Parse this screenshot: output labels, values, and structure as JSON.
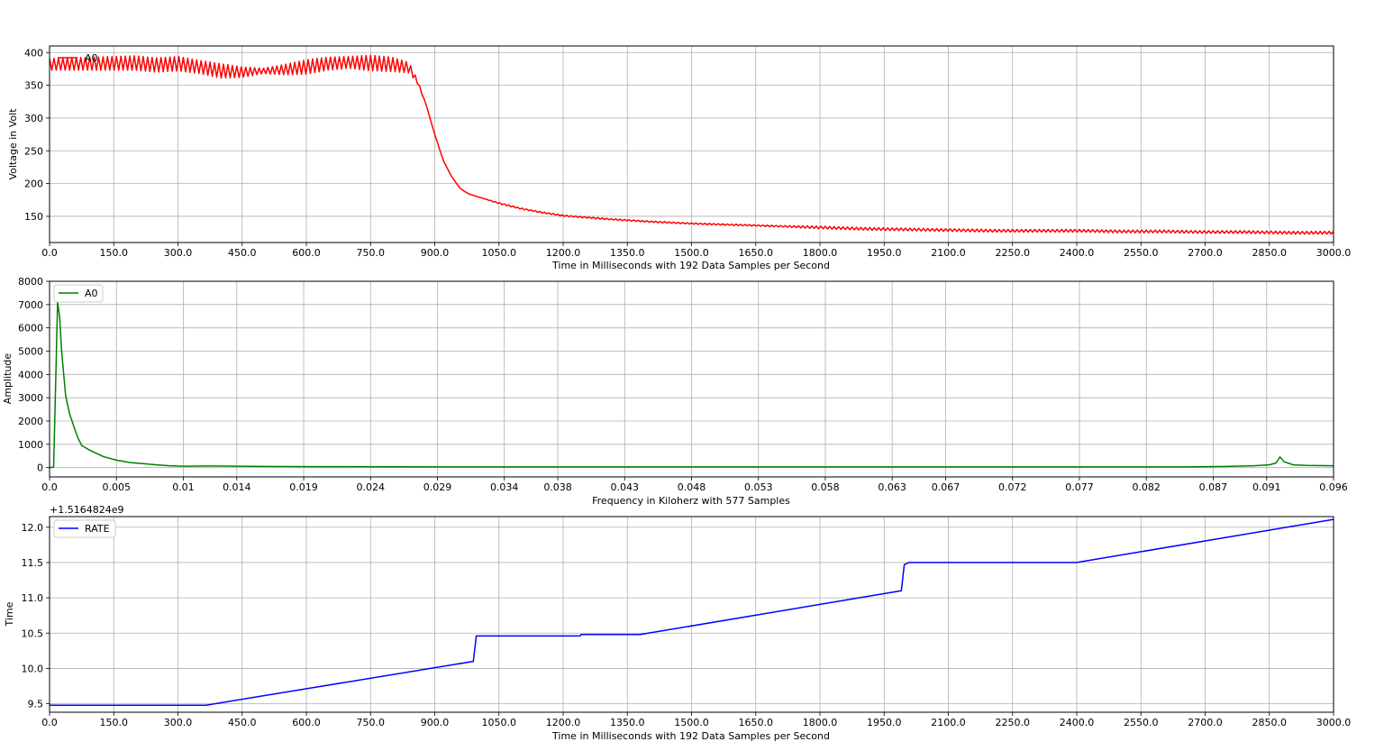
{
  "chart_data": [
    {
      "type": "line",
      "xlabel": "Time in Milliseconds with 192 Data Samples per Second",
      "ylabel": "Voltage in Volt",
      "xlim": [
        0,
        3000
      ],
      "ylim": [
        110,
        410
      ],
      "xticks": [
        0,
        150,
        300,
        450,
        600,
        750,
        900,
        1050,
        1200,
        1350,
        1500,
        1650,
        1800,
        1950,
        2100,
        2250,
        2400,
        2550,
        2700,
        2850,
        3000
      ],
      "xtick_labels": [
        "0.0",
        "150.0",
        "300.0",
        "450.0",
        "600.0",
        "750.0",
        "900.0",
        "1050.0",
        "1200.0",
        "1350.0",
        "1500.0",
        "1650.0",
        "1800.0",
        "1950.0",
        "2100.0",
        "2250.0",
        "2400.0",
        "2550.0",
        "2700.0",
        "2850.0",
        "3000.0"
      ],
      "yticks": [
        150,
        200,
        250,
        300,
        350,
        400
      ],
      "ytick_labels": [
        "150",
        "200",
        "250",
        "300",
        "350",
        "400"
      ],
      "grid": true,
      "legend": "top-left",
      "series": [
        {
          "name": "A0",
          "color": "#ff0000",
          "oscillation": "high-frequency ripple on the mean trace",
          "x": [
            0,
            100,
            200,
            250,
            300,
            350,
            400,
            450,
            500,
            550,
            600,
            650,
            700,
            750,
            800,
            840,
            860,
            880,
            900,
            920,
            940,
            960,
            980,
            1000,
            1050,
            1100,
            1150,
            1200,
            1300,
            1400,
            1500,
            1600,
            1700,
            1800,
            1900,
            2000,
            2100,
            2200,
            2300,
            2400,
            2500,
            2600,
            2700,
            2800,
            2900,
            3000
          ],
          "y": [
            382,
            383,
            384,
            381,
            383,
            378,
            372,
            370,
            372,
            374,
            378,
            383,
            385,
            384,
            382,
            377,
            355,
            320,
            275,
            235,
            210,
            192,
            184,
            180,
            170,
            162,
            156,
            151,
            146,
            142,
            139,
            137,
            135,
            133,
            131,
            130,
            129,
            128,
            128,
            128,
            127,
            127,
            126,
            126,
            125,
            125
          ],
          "ripple": [
            9,
            10,
            11,
            11,
            11,
            10,
            11,
            8,
            4,
            8,
            11,
            10,
            9,
            12,
            11,
            8,
            3,
            0,
            0,
            0,
            0,
            0,
            0,
            0,
            1,
            1,
            1,
            1,
            1,
            1,
            1,
            1,
            1,
            2,
            2,
            2,
            2,
            2,
            2,
            2,
            2,
            2,
            2,
            2,
            2,
            2
          ]
        }
      ]
    },
    {
      "type": "line",
      "xlabel": "Frequency in Kiloherz with 577 Samples",
      "ylabel": "Amplitude",
      "xlim": [
        0,
        0.096
      ],
      "ylim": [
        -400,
        8000
      ],
      "xticks": [
        0,
        0.005,
        0.01,
        0.014,
        0.019,
        0.024,
        0.029,
        0.034,
        0.038,
        0.043,
        0.048,
        0.053,
        0.058,
        0.063,
        0.067,
        0.072,
        0.077,
        0.082,
        0.087,
        0.091,
        0.096
      ],
      "xtick_labels": [
        "0.0",
        "0.005",
        "0.01",
        "0.014",
        "0.019",
        "0.024",
        "0.029",
        "0.034",
        "0.038",
        "0.043",
        "0.048",
        "0.053",
        "0.058",
        "0.063",
        "0.067",
        "0.072",
        "0.077",
        "0.082",
        "0.087",
        "0.091",
        "0.096"
      ],
      "yticks": [
        0,
        1000,
        2000,
        3000,
        4000,
        5000,
        6000,
        7000,
        8000
      ],
      "ytick_labels": [
        "0",
        "1000",
        "2000",
        "3000",
        "4000",
        "5000",
        "6000",
        "7000",
        "8000"
      ],
      "grid": true,
      "legend": "top-left",
      "series": [
        {
          "name": "A0",
          "color": "#008000",
          "x": [
            0,
            0.0003,
            0.00045,
            0.0006,
            0.00075,
            0.0009,
            0.0012,
            0.0015,
            0.0018,
            0.0021,
            0.0024,
            0.003,
            0.004,
            0.005,
            0.006,
            0.007,
            0.008,
            0.009,
            0.01,
            0.012,
            0.014,
            0.016,
            0.02,
            0.03,
            0.04,
            0.05,
            0.06,
            0.07,
            0.08,
            0.085,
            0.088,
            0.09,
            0.0912,
            0.0917,
            0.092,
            0.0923,
            0.093,
            0.094,
            0.096
          ],
          "y": [
            0,
            20,
            3500,
            7100,
            6500,
            5000,
            3100,
            2300,
            1800,
            1300,
            950,
            750,
            480,
            320,
            220,
            170,
            120,
            80,
            60,
            70,
            60,
            50,
            40,
            30,
            30,
            30,
            30,
            30,
            30,
            30,
            50,
            80,
            120,
            200,
            460,
            250,
            120,
            90,
            80
          ]
        }
      ]
    },
    {
      "type": "line",
      "xlabel": "Time in Milliseconds with 192 Data Samples per Second",
      "ylabel": "Time",
      "offset_text": "+1.5164824e9",
      "xlim": [
        0,
        3000
      ],
      "ylim": [
        9.38,
        12.15
      ],
      "xticks": [
        0,
        150,
        300,
        450,
        600,
        750,
        900,
        1050,
        1200,
        1350,
        1500,
        1650,
        1800,
        1950,
        2100,
        2250,
        2400,
        2550,
        2700,
        2850,
        3000
      ],
      "xtick_labels": [
        "0.0",
        "150.0",
        "300.0",
        "450.0",
        "600.0",
        "750.0",
        "900.0",
        "1050.0",
        "1200.0",
        "1350.0",
        "1500.0",
        "1650.0",
        "1800.0",
        "1950.0",
        "2100.0",
        "2250.0",
        "2400.0",
        "2550.0",
        "2700.0",
        "2850.0",
        "3000.0"
      ],
      "yticks": [
        9.5,
        10.0,
        10.5,
        11.0,
        11.5,
        12.0
      ],
      "ytick_labels": [
        "9.5",
        "10.0",
        "10.5",
        "11.0",
        "11.5",
        "12.0"
      ],
      "grid": true,
      "legend": "top-left",
      "series": [
        {
          "name": "RATE",
          "color": "#0000ff",
          "x": [
            0,
            365,
            990,
            997,
            1240,
            1242,
            1380,
            1990,
            1997,
            2008,
            2400,
            3000
          ],
          "y": [
            9.48,
            9.48,
            10.1,
            10.46,
            10.46,
            10.48,
            10.48,
            11.1,
            11.47,
            11.5,
            11.5,
            12.11
          ]
        }
      ]
    }
  ]
}
